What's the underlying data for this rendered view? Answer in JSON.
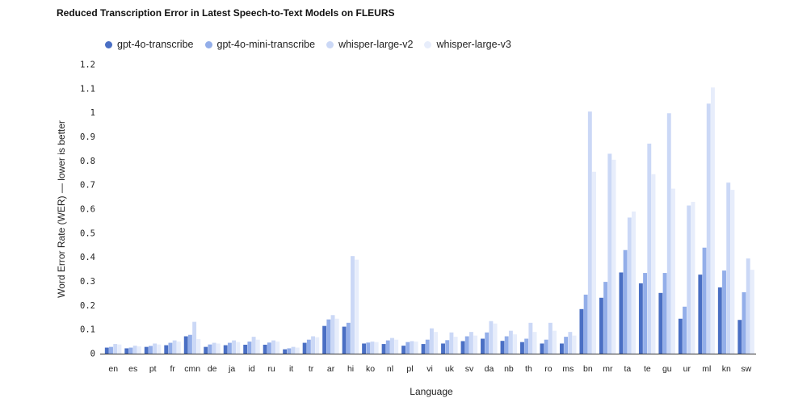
{
  "chart_data": {
    "type": "bar",
    "title": "Reduced Transcription Error in Latest Speech-to-Text Models on FLEURS",
    "xlabel": "Language",
    "ylabel": "Word Error Rate (WER) — lower is better",
    "ylim": [
      0,
      1.2
    ],
    "yticks": [
      0,
      0.1,
      0.2,
      0.3,
      0.4,
      0.5,
      0.6,
      0.7,
      0.8,
      0.9,
      1,
      1.1,
      1.2
    ],
    "legend_position": "top-left",
    "categories": [
      "en",
      "es",
      "pt",
      "fr",
      "cmn",
      "de",
      "ja",
      "id",
      "ru",
      "it",
      "tr",
      "ar",
      "hi",
      "ko",
      "nl",
      "pl",
      "vi",
      "uk",
      "sv",
      "da",
      "nb",
      "th",
      "ro",
      "ms",
      "bn",
      "mr",
      "ta",
      "te",
      "gu",
      "ur",
      "ml",
      "kn",
      "sw"
    ],
    "series": [
      {
        "name": "gpt-4o-transcribe",
        "color": "#4a6fc4",
        "values": [
          0.025,
          0.022,
          0.028,
          0.035,
          0.072,
          0.028,
          0.035,
          0.037,
          0.037,
          0.018,
          0.045,
          0.115,
          0.112,
          0.042,
          0.04,
          0.033,
          0.04,
          0.042,
          0.052,
          0.062,
          0.053,
          0.048,
          0.042,
          0.042,
          0.185,
          0.232,
          0.337,
          0.292,
          0.252,
          0.145,
          0.328,
          0.275,
          0.14
        ]
      },
      {
        "name": "gpt-4o-mini-transcribe",
        "color": "#93aee9",
        "values": [
          0.028,
          0.025,
          0.032,
          0.045,
          0.078,
          0.038,
          0.045,
          0.05,
          0.046,
          0.022,
          0.058,
          0.142,
          0.128,
          0.046,
          0.055,
          0.048,
          0.058,
          0.056,
          0.072,
          0.088,
          0.072,
          0.062,
          0.058,
          0.07,
          0.245,
          0.298,
          0.43,
          0.335,
          0.335,
          0.195,
          0.44,
          0.345,
          0.255
        ]
      },
      {
        "name": "whisper-large-v2",
        "color": "#cbd8f6",
        "values": [
          0.04,
          0.033,
          0.042,
          0.055,
          0.132,
          0.045,
          0.055,
          0.07,
          0.055,
          0.028,
          0.072,
          0.16,
          0.405,
          0.05,
          0.065,
          0.052,
          0.105,
          0.088,
          0.09,
          0.135,
          0.095,
          0.128,
          0.128,
          0.09,
          1.005,
          0.83,
          0.565,
          0.872,
          0.998,
          0.615,
          1.038,
          0.71,
          0.395
        ]
      },
      {
        "name": "whisper-large-v3",
        "color": "#e7edfb",
        "values": [
          0.038,
          0.03,
          0.038,
          0.05,
          0.06,
          0.042,
          0.048,
          0.058,
          0.05,
          0.025,
          0.068,
          0.145,
          0.39,
          0.048,
          0.058,
          0.05,
          0.09,
          0.07,
          0.075,
          0.125,
          0.08,
          0.09,
          0.095,
          0.075,
          0.755,
          0.805,
          0.59,
          0.745,
          0.685,
          0.63,
          1.105,
          0.68,
          0.348
        ]
      }
    ]
  }
}
